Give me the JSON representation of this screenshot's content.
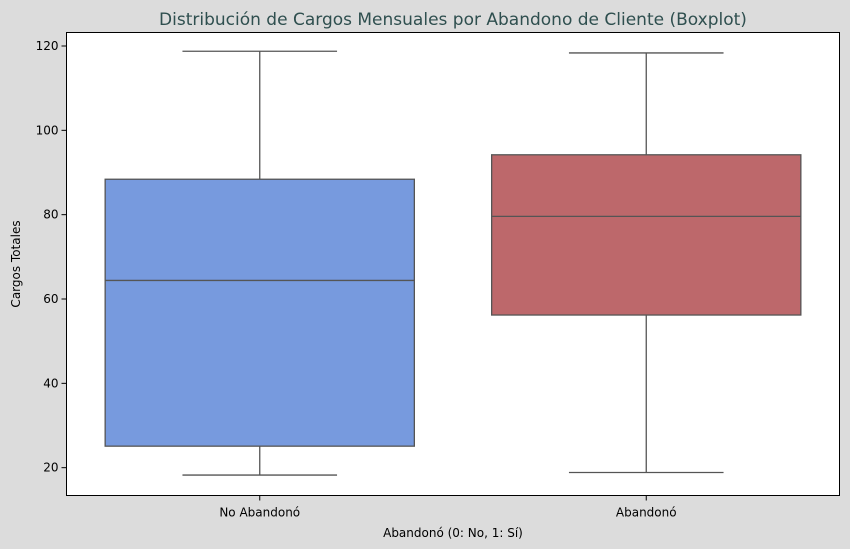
{
  "chart_data": {
    "type": "boxplot",
    "title": "Distribución de Cargos Mensuales por Abandono de Cliente (Boxplot)",
    "xlabel": "Abandonó (0: No, 1: Sí)",
    "ylabel": "Cargos Totales",
    "ylim": [
      13.4,
      123.2
    ],
    "yticks": [
      20,
      40,
      60,
      80,
      100,
      120
    ],
    "ytick_labels": [
      "20",
      "40",
      "60",
      "80",
      "100",
      "120"
    ],
    "categories": [
      "No Abandonó",
      "Abandonó"
    ],
    "boxes": [
      {
        "category": "No Abandonó",
        "whisker_low": 18.25,
        "q1": 25.1,
        "median": 64.4,
        "q3": 88.4,
        "whisker_high": 118.75,
        "color": "#779ade"
      },
      {
        "category": "Abandonó",
        "whisker_low": 18.85,
        "q1": 56.2,
        "median": 79.6,
        "q3": 94.2,
        "whisker_high": 118.35,
        "color": "#bd686b"
      }
    ],
    "grid": false,
    "legend": false
  },
  "colors": {
    "background": "#dcdcdc",
    "plot_background": "#ffffff",
    "title": "#2f4f4f",
    "line": "#555555"
  }
}
